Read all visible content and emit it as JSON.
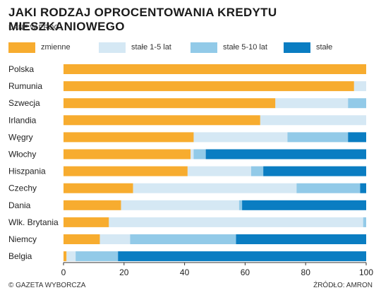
{
  "title": "JAKI RODZAJ OPROCENTOWANIA KREDYTU MIESZKANIOWEGO",
  "subtitle": "DANE W PROC.",
  "footer": {
    "left": "© GAZETA WYBORCZA",
    "right": "ŹRÓDŁO: AMRON"
  },
  "chart_data": {
    "type": "bar",
    "orientation": "horizontal",
    "stacked": true,
    "categories": [
      "Polska",
      "Rumunia",
      "Szwecja",
      "Irlandia",
      "Węgry",
      "Włochy",
      "Hiszpania",
      "Czechy",
      "Dania",
      "Wlk. Brytania",
      "Niemcy",
      "Belgia"
    ],
    "series": [
      {
        "name": "zmienne",
        "color": "#f7ac2f",
        "values": [
          100,
          96,
          70,
          65,
          43,
          42,
          41,
          23,
          19,
          15,
          12,
          1
        ]
      },
      {
        "name": "stałe 1-5 lat",
        "color": "#d5e8f4",
        "values": [
          0,
          4,
          24,
          35,
          31,
          1,
          21,
          54,
          39,
          84,
          10,
          3
        ]
      },
      {
        "name": "stałe 5-10 lat",
        "color": "#92cae8",
        "values": [
          0,
          0,
          6,
          0,
          20,
          4,
          4,
          21,
          1,
          1,
          35,
          14
        ]
      },
      {
        "name": "stałe",
        "color": "#0a7dc2",
        "values": [
          0,
          0,
          0,
          0,
          6,
          53,
          34,
          2,
          41,
          0,
          43,
          82
        ]
      }
    ],
    "xlim": [
      0,
      100
    ],
    "xticks": [
      0,
      20,
      40,
      60,
      80,
      100
    ],
    "legend_position": "top"
  }
}
